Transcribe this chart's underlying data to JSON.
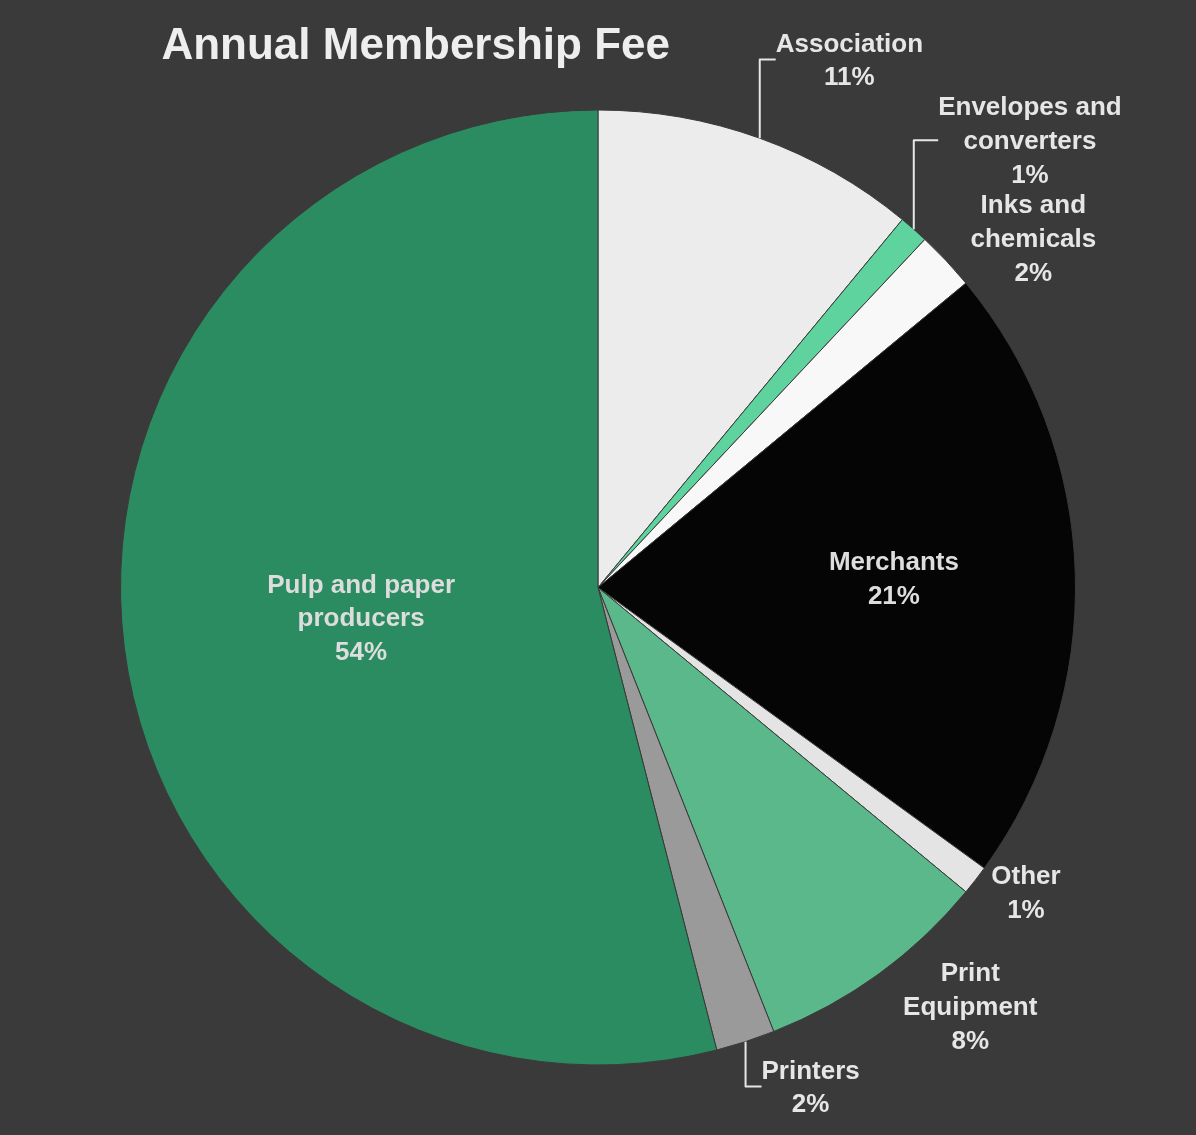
{
  "chart_data": {
    "type": "pie",
    "title": "Annual Membership Fee",
    "categories": [
      "Association",
      "Envelopes and converters",
      "Inks and chemicals",
      "Merchants",
      "Other",
      "Print Equipment",
      "Printers",
      "Pulp and paper producers"
    ],
    "values": [
      11,
      1,
      2,
      21,
      1,
      8,
      2,
      54
    ],
    "value_labels": [
      "11%",
      "1%",
      "2%",
      "21%",
      "1%",
      "8%",
      "2%",
      "54%"
    ],
    "colors": [
      "#ececec",
      "#5fd39e",
      "#f8f8f8",
      "#050505",
      "#e4e4e4",
      "#5ab88a",
      "#9a9a9a",
      "#2a8c60"
    ]
  }
}
